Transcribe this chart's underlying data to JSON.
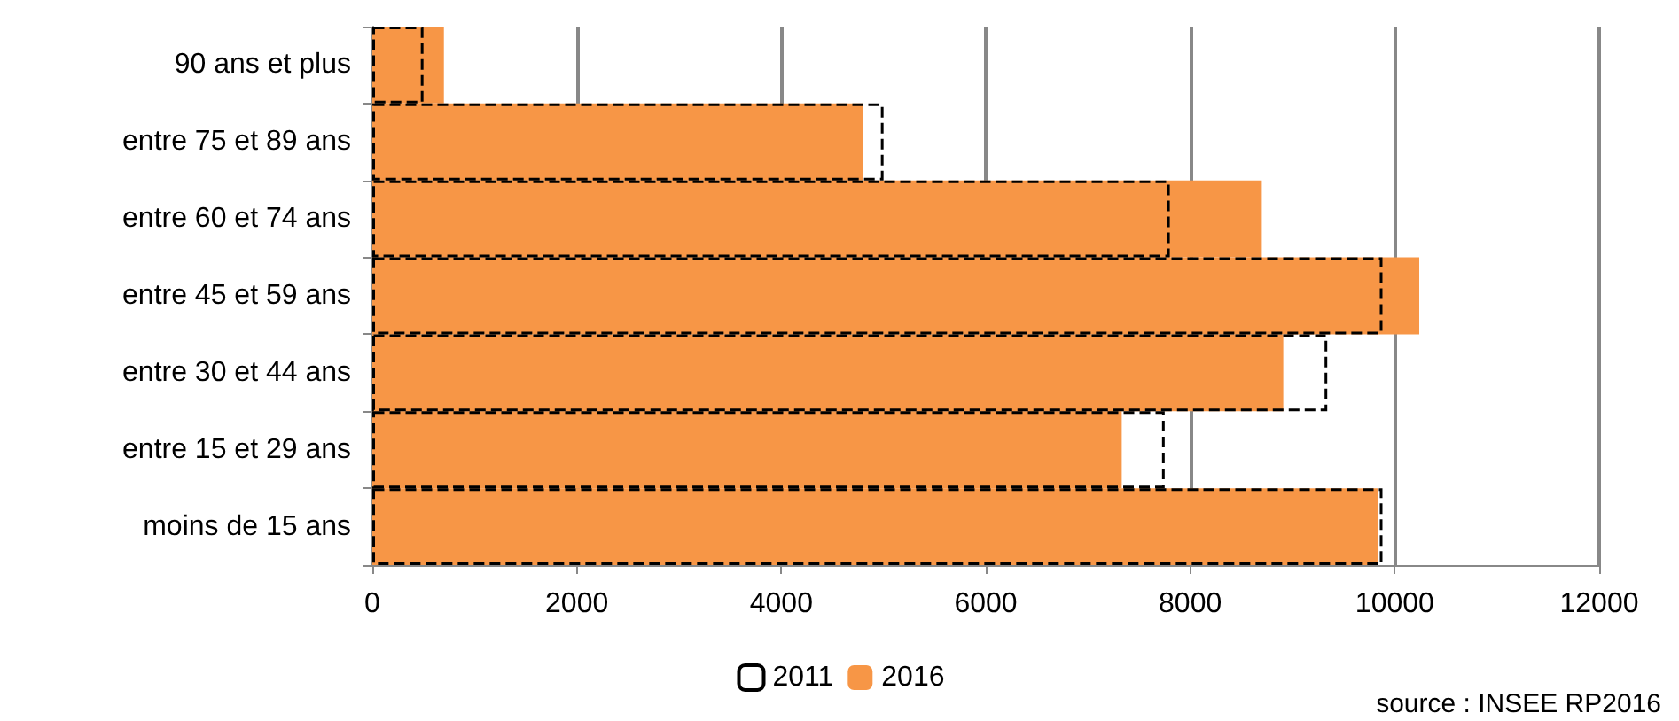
{
  "chart_data": {
    "type": "bar",
    "orientation": "horizontal",
    "categories": [
      "90 ans et plus",
      "entre 75 et 89 ans",
      "entre 60 et 74 ans",
      "entre 45 et 59 ans",
      "entre 30 et 44 ans",
      "entre 15 et 29 ans",
      "moins de 15 ans"
    ],
    "series": [
      {
        "name": "2011",
        "color": "#000000",
        "line_style": "dashed",
        "values": [
          500,
          5000,
          7800,
          9880,
          9340,
          7750,
          9880
        ]
      },
      {
        "name": "2016",
        "color": "#f79646",
        "values": [
          700,
          4800,
          8700,
          10240,
          8910,
          7330,
          9840
        ]
      }
    ],
    "xlim": [
      0,
      12000
    ],
    "xticks": [
      0,
      2000,
      4000,
      6000,
      8000,
      10000,
      12000
    ],
    "grid": "x",
    "legend": "bottom",
    "annotations": [
      "source : INSEE RP2016"
    ]
  }
}
